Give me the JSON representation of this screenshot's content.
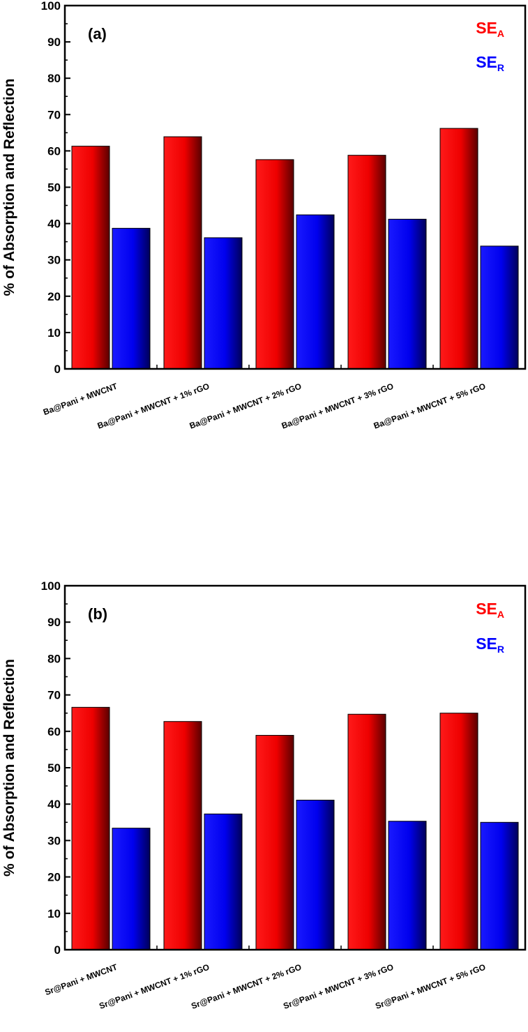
{
  "chart_data": [
    {
      "type": "bar",
      "panel_label": "(a)",
      "ylabel": "% of Absorption and Reflection",
      "xlabel": "",
      "ylim": [
        0,
        100
      ],
      "yticks": [
        0,
        10,
        20,
        30,
        40,
        50,
        60,
        70,
        80,
        90,
        100
      ],
      "categories": [
        "Ba@Pani + MWCNT",
        "Ba@Pani + MWCNT + 1% rGO",
        "Ba@Pani + MWCNT + 2% rGO",
        "Ba@Pani + MWCNT + 3% rGO",
        "Ba@Pani + MWCNT + 5% rGO"
      ],
      "series": [
        {
          "name": "SE",
          "sub": "A",
          "color": "#ff0000",
          "values": [
            61.3,
            63.9,
            57.6,
            58.8,
            66.2
          ]
        },
        {
          "name": "SE",
          "sub": "R",
          "color": "#0000ff",
          "values": [
            38.7,
            36.1,
            42.4,
            41.2,
            33.8
          ]
        }
      ],
      "legend_position": "top-right"
    },
    {
      "type": "bar",
      "panel_label": "(b)",
      "ylabel": "% of Absorption and Reflection",
      "xlabel": "",
      "ylim": [
        0,
        100
      ],
      "yticks": [
        0,
        10,
        20,
        30,
        40,
        50,
        60,
        70,
        80,
        90,
        100
      ],
      "categories": [
        "Sr@Pani + MWCNT",
        "Sr@Pani + MWCNT + 1% rGO",
        "Sr@Pani + MWCNT + 2% rGO",
        "Sr@Pani + MWCNT + 3% rGO",
        "Sr@Pani + MWCNT + 5% rGO"
      ],
      "series": [
        {
          "name": "SE",
          "sub": "A",
          "color": "#ff0000",
          "values": [
            66.6,
            62.7,
            58.9,
            64.7,
            65.0
          ]
        },
        {
          "name": "SE",
          "sub": "R",
          "color": "#0000ff",
          "values": [
            33.4,
            37.3,
            41.1,
            35.3,
            35.0
          ]
        }
      ],
      "legend_position": "top-right"
    }
  ]
}
